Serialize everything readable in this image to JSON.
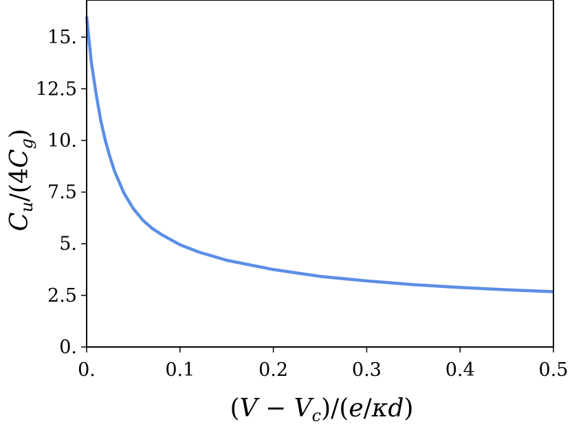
{
  "chart_data": {
    "type": "line",
    "title": "",
    "xlabel_parts": {
      "open": "(",
      "v": "V",
      "minus": " − ",
      "vc": "V",
      "vc_sub": "c",
      "mid": ")/(",
      "e": "e",
      "slash": "/",
      "kd": "κd",
      "close": ")"
    },
    "ylabel_parts": {
      "c": "C",
      "c_sub": "u",
      "mid": "/(4",
      "cg": "C",
      "cg_sub": "g",
      "close": ")"
    },
    "xlim": [
      0,
      0.5
    ],
    "ylim": [
      0,
      16.8
    ],
    "xticks": [
      0,
      0.1,
      0.2,
      0.3,
      0.4,
      0.5
    ],
    "xtick_labels": [
      "0.",
      "0.1",
      "0.2",
      "0.3",
      "0.4",
      "0.5"
    ],
    "yticks": [
      0,
      2.5,
      5,
      7.5,
      10,
      12.5,
      15
    ],
    "ytick_labels": [
      "0.",
      "2.5",
      "5.",
      "7.5",
      "10.",
      "12.5",
      "15."
    ],
    "grid": false,
    "series": [
      {
        "color": "#5b8ee6",
        "x": [
          0.0,
          0.005,
          0.01,
          0.015,
          0.02,
          0.025,
          0.03,
          0.04,
          0.05,
          0.06,
          0.07,
          0.08,
          0.1,
          0.12,
          0.15,
          0.2,
          0.25,
          0.3,
          0.35,
          0.4,
          0.45,
          0.5
        ],
        "y": [
          16.0,
          13.8,
          12.3,
          11.0,
          10.0,
          9.2,
          8.5,
          7.45,
          6.7,
          6.15,
          5.75,
          5.45,
          4.95,
          4.6,
          4.2,
          3.75,
          3.42,
          3.2,
          3.02,
          2.88,
          2.77,
          2.68
        ]
      }
    ]
  }
}
